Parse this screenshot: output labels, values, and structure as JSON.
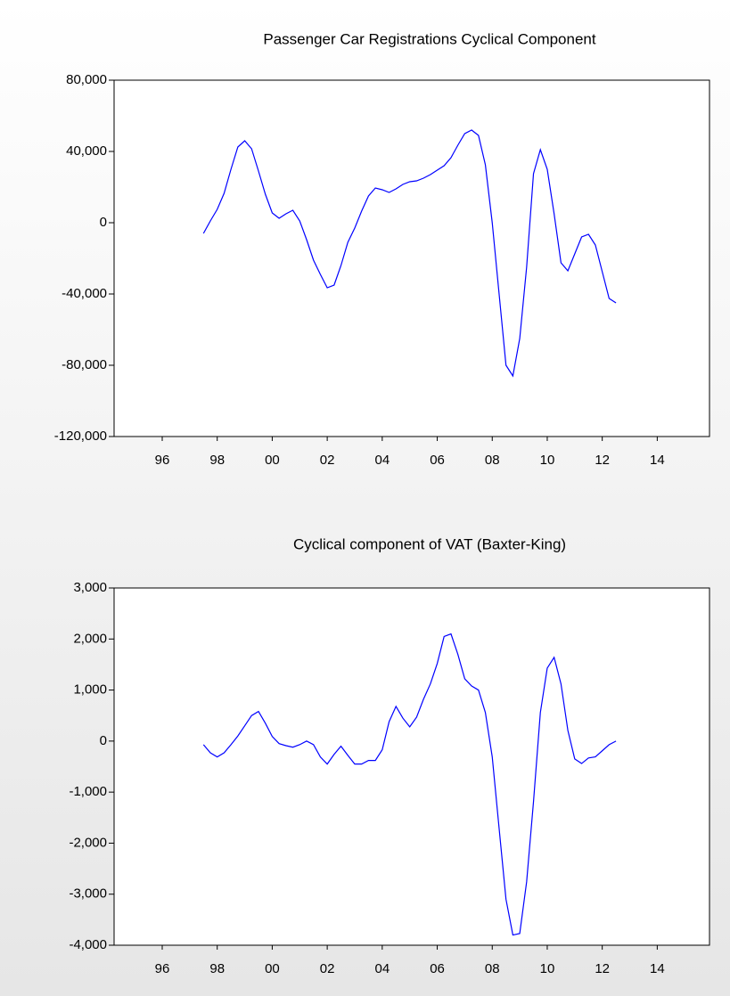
{
  "chart_data": [
    {
      "type": "line",
      "title": "Passenger Car Registrations Cyclical Component",
      "x": [
        1998,
        1998.25,
        1998.5,
        1998.75,
        1999,
        1999.25,
        1999.5,
        1999.75,
        2000,
        2000.25,
        2000.5,
        2000.75,
        2001,
        2001.25,
        2001.5,
        2001.75,
        2002,
        2002.25,
        2002.5,
        2002.75,
        2003,
        2003.25,
        2003.5,
        2003.75,
        2004,
        2004.25,
        2004.5,
        2004.75,
        2005,
        2005.25,
        2005.5,
        2005.75,
        2006,
        2006.25,
        2006.5,
        2006.75,
        2007,
        2007.25,
        2007.5,
        2007.75,
        2008,
        2008.25,
        2008.5,
        2008.75,
        2009,
        2009.25,
        2009.5,
        2009.75,
        2010,
        2010.25,
        2010.5,
        2010.75,
        2011,
        2011.25,
        2011.5,
        2011.75,
        2012,
        2012.25,
        2012.5,
        2012.75,
        2013
      ],
      "series": [
        {
          "name": "Passenger Car Registrations",
          "color": "#0000ff",
          "values": [
            -6000,
            1000,
            7500,
            16500,
            30000,
            42500,
            46000,
            41500,
            29000,
            16000,
            5500,
            2500,
            5000,
            7000,
            1000,
            -9500,
            -21000,
            -29000,
            -36500,
            -35000,
            -24000,
            -11000,
            -3000,
            6500,
            15000,
            19500,
            18500,
            17000,
            19000,
            21500,
            23000,
            23500,
            25000,
            27000,
            29500,
            32000,
            36500,
            43500,
            50000,
            52000,
            49000,
            32500,
            0,
            -40000,
            -80000,
            -86000,
            -65000,
            -25000,
            27500,
            41000,
            30000,
            5000,
            -22500,
            -27000,
            -17500,
            -8000,
            -6500,
            -12500,
            -27500,
            -42500,
            -45000
          ]
        }
      ],
      "xlim": [
        1994.75,
        2016.4
      ],
      "xticks": [
        {
          "value": 1996.5,
          "label": "96"
        },
        {
          "value": 1998.5,
          "label": "98"
        },
        {
          "value": 2000.5,
          "label": "00"
        },
        {
          "value": 2002.5,
          "label": "02"
        },
        {
          "value": 2004.5,
          "label": "04"
        },
        {
          "value": 2006.5,
          "label": "06"
        },
        {
          "value": 2008.5,
          "label": "08"
        },
        {
          "value": 2010.5,
          "label": "10"
        },
        {
          "value": 2012.5,
          "label": "12"
        },
        {
          "value": 2014.5,
          "label": "14"
        }
      ],
      "ylim": [
        -120000,
        80000
      ],
      "yticks": [
        {
          "value": -120000,
          "label": "-120,000"
        },
        {
          "value": -80000,
          "label": "-80,000"
        },
        {
          "value": -40000,
          "label": "-40,000"
        },
        0,
        {
          "value": 40000,
          "label": "40,000"
        },
        {
          "value": 80000,
          "label": "80,000"
        }
      ],
      "grid": false
    },
    {
      "type": "line",
      "title": "Cyclical component of VAT (Baxter-King)",
      "x": [
        1998,
        1998.25,
        1998.5,
        1998.75,
        1999,
        1999.25,
        1999.5,
        1999.75,
        2000,
        2000.25,
        2000.5,
        2000.75,
        2001,
        2001.25,
        2001.5,
        2001.75,
        2002,
        2002.25,
        2002.5,
        2002.75,
        2003,
        2003.25,
        2003.5,
        2003.75,
        2004,
        2004.25,
        2004.5,
        2004.75,
        2005,
        2005.25,
        2005.5,
        2005.75,
        2006,
        2006.25,
        2006.5,
        2006.75,
        2007,
        2007.25,
        2007.5,
        2007.75,
        2008,
        2008.25,
        2008.5,
        2008.75,
        2009,
        2009.25,
        2009.5,
        2009.75,
        2010,
        2010.25,
        2010.5,
        2010.75,
        2011,
        2011.25,
        2011.5,
        2011.75,
        2012,
        2012.25,
        2012.5,
        2012.75,
        2013
      ],
      "series": [
        {
          "name": "VAT",
          "color": "#0000ff",
          "values": [
            -70,
            -230,
            -310,
            -230,
            -70,
            100,
            300,
            500,
            580,
            350,
            90,
            -50,
            -90,
            -120,
            -70,
            0,
            -70,
            -310,
            -450,
            -260,
            -100,
            -280,
            -450,
            -450,
            -380,
            -380,
            -170,
            380,
            680,
            450,
            280,
            470,
            820,
            1120,
            1520,
            2050,
            2100,
            1700,
            1220,
            1080,
            1000,
            560,
            -310,
            -1710,
            -3100,
            -3800,
            -3770,
            -2760,
            -1190,
            560,
            1430,
            1640,
            1120,
            210,
            -350,
            -440,
            -330,
            -310,
            -190,
            -70,
            0
          ]
        }
      ],
      "xlim": [
        1994.75,
        2016.4
      ],
      "xticks": [
        {
          "value": 1996.5,
          "label": "96"
        },
        {
          "value": 1998.5,
          "label": "98"
        },
        {
          "value": 2000.5,
          "label": "00"
        },
        {
          "value": 2002.5,
          "label": "02"
        },
        {
          "value": 2004.5,
          "label": "04"
        },
        {
          "value": 2006.5,
          "label": "06"
        },
        {
          "value": 2008.5,
          "label": "08"
        },
        {
          "value": 2010.5,
          "label": "10"
        },
        {
          "value": 2012.5,
          "label": "12"
        },
        {
          "value": 2014.5,
          "label": "14"
        }
      ],
      "ylim": [
        -4000,
        3000
      ],
      "yticks": [
        {
          "value": -4000,
          "label": "-4,000"
        },
        {
          "value": -3000,
          "label": "-3,000"
        },
        {
          "value": -2000,
          "label": "-2,000"
        },
        {
          "value": -1000,
          "label": "-1,000"
        },
        0,
        {
          "value": 1000,
          "label": "1,000"
        },
        {
          "value": 2000,
          "label": "2,000"
        },
        {
          "value": 3000,
          "label": "3,000"
        }
      ],
      "grid": false
    }
  ]
}
